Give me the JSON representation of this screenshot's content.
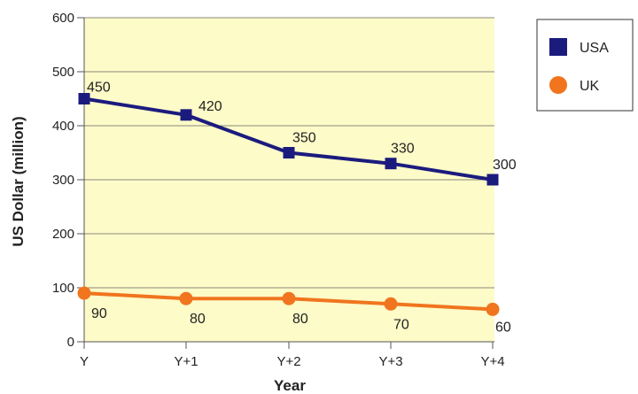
{
  "chart_data": {
    "type": "line",
    "categories": [
      "Y",
      "Y+1",
      "Y+2",
      "Y+3",
      "Y+4"
    ],
    "xlabel": "Year",
    "ylabel": "US Dollar (million)",
    "ylim": [
      0,
      600
    ],
    "yticks": [
      0,
      100,
      200,
      300,
      400,
      500,
      600
    ],
    "grid": "horizontal",
    "legend_position": "top-right",
    "plot_background": "#fdfbc8",
    "series": [
      {
        "name": "USA",
        "values": [
          450,
          420,
          350,
          330,
          300
        ],
        "labels": [
          "450",
          "420",
          "350",
          "330",
          "300"
        ],
        "color": "#1b1b7e",
        "marker": "square"
      },
      {
        "name": "UK",
        "values": [
          90,
          80,
          80,
          70,
          60
        ],
        "labels": [
          "90",
          "80",
          "80",
          "70",
          "60"
        ],
        "color": "#f0751e",
        "marker": "circle"
      }
    ]
  }
}
